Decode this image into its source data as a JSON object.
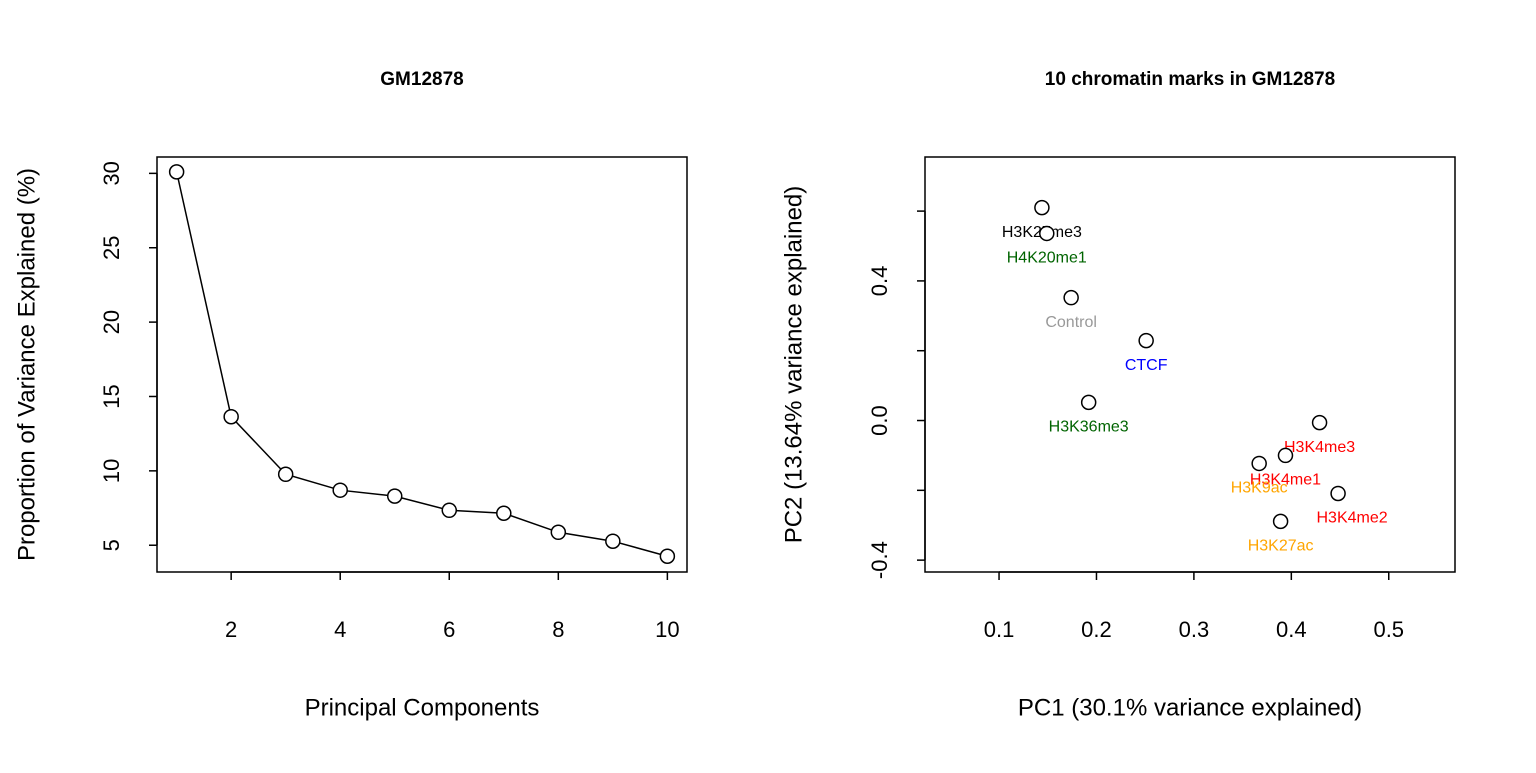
{
  "chart_data": [
    {
      "type": "line",
      "title": "GM12878",
      "x_label": "Principal Components",
      "y_label": "Proportion of Variance Explained (%)",
      "x": [
        1,
        2,
        3,
        4,
        5,
        6,
        7,
        8,
        9,
        10
      ],
      "values": [
        30.1,
        13.64,
        9.77,
        8.7,
        8.3,
        7.35,
        7.15,
        5.87,
        5.27,
        4.26
      ],
      "color": "#000000",
      "xlim": [
        0.64,
        10.36
      ],
      "xticks": [
        2,
        4,
        6,
        8,
        10
      ],
      "ylim": [
        3.2,
        31.1
      ],
      "yticks": [
        5,
        10,
        15,
        20,
        25,
        30
      ]
    },
    {
      "type": "scatter",
      "title": "10 chromatin marks in GM12878",
      "x_label": "PC1 (30.1% variance explained)",
      "y_label": "PC2 (13.64% variance explained)",
      "labels": [
        "H3K27me3",
        "H4K20me1",
        "Control",
        "CTCF",
        "H3K36me3",
        "H3K4me3",
        "H3K4me1",
        "H3K9ac",
        "H3K4me2",
        "H3K27ac"
      ],
      "label_colors": [
        "#000000",
        "#006400",
        "#999999",
        "#0000ff",
        "#006400",
        "#ff0000",
        "#ff0000",
        "#ffa500",
        "#ff0000",
        "#ffa500"
      ],
      "x": [
        0.144,
        0.149,
        0.174,
        0.251,
        0.192,
        0.429,
        0.394,
        0.367,
        0.448,
        0.389
      ],
      "values": [
        0.61,
        0.536,
        0.352,
        0.229,
        0.052,
        -0.006,
        -0.1,
        -0.123,
        -0.209,
        -0.289
      ],
      "color": "#000000",
      "xlim": [
        0.024,
        0.568
      ],
      "xticks": [
        0.1,
        0.2,
        0.3,
        0.4,
        0.5
      ],
      "ylim": [
        -0.434,
        0.755
      ],
      "yticks": [
        -0.4,
        -0.2,
        {
          "value": 0,
          "label": "0.0"
        },
        0.2,
        0.4,
        0.6
      ]
    }
  ]
}
